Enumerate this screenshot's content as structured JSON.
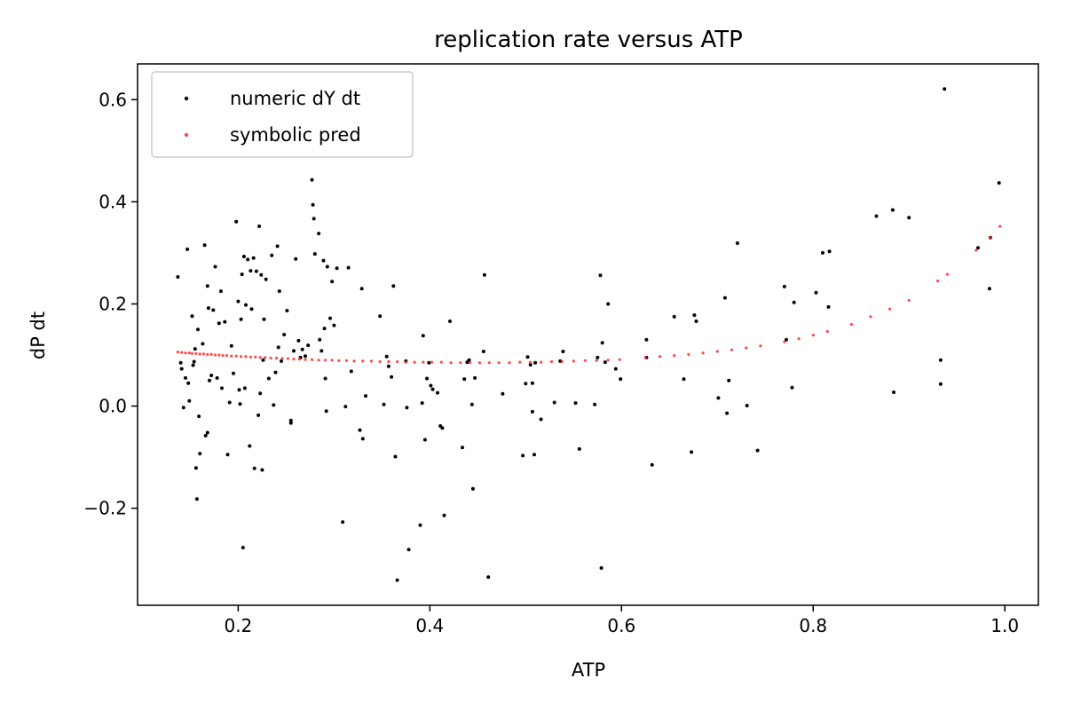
{
  "chart_data": {
    "type": "scatter",
    "title": "replication rate versus ATP",
    "xlabel": "ATP",
    "ylabel": "dP dt",
    "xlim": [
      0.095,
      1.035
    ],
    "ylim": [
      -0.39,
      0.67
    ],
    "xticks": [
      0.2,
      0.4,
      0.6,
      0.8,
      1.0
    ],
    "xtick_labels": [
      "0.2",
      "0.4",
      "0.6",
      "0.8",
      "1.0"
    ],
    "yticks": [
      -0.2,
      0.0,
      0.2,
      0.4,
      0.6
    ],
    "ytick_labels": [
      "−0.2",
      "0.0",
      "0.2",
      "0.4",
      "0.6"
    ],
    "grid": false,
    "legend_position": "top-left",
    "series": [
      {
        "name": "numeric dY dt",
        "color": "#000000",
        "points": [
          [
            0.137,
            0.253
          ],
          [
            0.14,
            0.085
          ],
          [
            0.141,
            0.073
          ],
          [
            0.143,
            -0.003
          ],
          [
            0.145,
            0.055
          ],
          [
            0.147,
            0.307
          ],
          [
            0.148,
            0.045
          ],
          [
            0.149,
            0.01
          ],
          [
            0.152,
            0.176
          ],
          [
            0.153,
            0.08
          ],
          [
            0.154,
            0.087
          ],
          [
            0.155,
            0.112
          ],
          [
            0.156,
            -0.121
          ],
          [
            0.157,
            -0.182
          ],
          [
            0.158,
            0.15
          ],
          [
            0.159,
            -0.02
          ],
          [
            0.16,
            -0.093
          ],
          [
            0.163,
            0.122
          ],
          [
            0.165,
            0.315
          ],
          [
            0.166,
            -0.058
          ],
          [
            0.168,
            -0.052
          ],
          [
            0.168,
            0.235
          ],
          [
            0.169,
            0.192
          ],
          [
            0.17,
            0.05
          ],
          [
            0.172,
            0.06
          ],
          [
            0.174,
            0.188
          ],
          [
            0.176,
            0.273
          ],
          [
            0.178,
            0.055
          ],
          [
            0.18,
            0.162
          ],
          [
            0.182,
            0.225
          ],
          [
            0.183,
            0.035
          ],
          [
            0.186,
            0.165
          ],
          [
            0.189,
            -0.095
          ],
          [
            0.191,
            0.007
          ],
          [
            0.193,
            0.118
          ],
          [
            0.195,
            0.064
          ],
          [
            0.198,
            0.361
          ],
          [
            0.2,
            0.205
          ],
          [
            0.201,
            0.032
          ],
          [
            0.202,
            0.004
          ],
          [
            0.203,
            0.17
          ],
          [
            0.204,
            0.258
          ],
          [
            0.205,
            -0.277
          ],
          [
            0.206,
            0.293
          ],
          [
            0.207,
            0.035
          ],
          [
            0.208,
            0.198
          ],
          [
            0.21,
            0.287
          ],
          [
            0.212,
            -0.078
          ],
          [
            0.213,
            0.265
          ],
          [
            0.214,
            0.19
          ],
          [
            0.216,
            0.29
          ],
          [
            0.217,
            -0.122
          ],
          [
            0.219,
            0.264
          ],
          [
            0.221,
            -0.018
          ],
          [
            0.222,
            0.352
          ],
          [
            0.223,
            0.025
          ],
          [
            0.224,
            0.257
          ],
          [
            0.225,
            -0.125
          ],
          [
            0.226,
            0.09
          ],
          [
            0.227,
            0.17
          ],
          [
            0.229,
            0.248
          ],
          [
            0.232,
            0.054
          ],
          [
            0.235,
            0.295
          ],
          [
            0.237,
            0.002
          ],
          [
            0.239,
            0.066
          ],
          [
            0.241,
            0.313
          ],
          [
            0.242,
            0.115
          ],
          [
            0.243,
            0.225
          ],
          [
            0.245,
            0.088
          ],
          [
            0.248,
            0.14
          ],
          [
            0.251,
            0.187
          ],
          [
            0.255,
            -0.028
          ],
          [
            0.255,
            -0.033
          ],
          [
            0.258,
            0.108
          ],
          [
            0.26,
            0.288
          ],
          [
            0.263,
            0.128
          ],
          [
            0.265,
            0.095
          ],
          [
            0.267,
            0.111
          ],
          [
            0.27,
            0.098
          ],
          [
            0.273,
            0.119
          ],
          [
            0.277,
            0.443
          ],
          [
            0.278,
            0.394
          ],
          [
            0.279,
            0.367
          ],
          [
            0.28,
            0.298
          ],
          [
            0.284,
            0.338
          ],
          [
            0.285,
            0.13
          ],
          [
            0.287,
            0.108
          ],
          [
            0.289,
            0.285
          ],
          [
            0.29,
            0.152
          ],
          [
            0.291,
            0.054
          ],
          [
            0.292,
            -0.01
          ],
          [
            0.293,
            0.273
          ],
          [
            0.296,
            0.172
          ],
          [
            0.298,
            0.244
          ],
          [
            0.3,
            0.158
          ],
          [
            0.303,
            0.27
          ],
          [
            0.309,
            -0.227
          ],
          [
            0.312,
            -0.001
          ],
          [
            0.315,
            0.271
          ],
          [
            0.318,
            0.068
          ],
          [
            0.327,
            -0.047
          ],
          [
            0.329,
            0.23
          ],
          [
            0.33,
            -0.064
          ],
          [
            0.333,
            0.02
          ],
          [
            0.348,
            0.176
          ],
          [
            0.352,
            0.003
          ],
          [
            0.355,
            0.097
          ],
          [
            0.357,
            0.078
          ],
          [
            0.36,
            0.057
          ],
          [
            0.362,
            0.235
          ],
          [
            0.364,
            -0.099
          ],
          [
            0.366,
            -0.341
          ],
          [
            0.375,
            0.088
          ],
          [
            0.376,
            -0.003
          ],
          [
            0.378,
            -0.281
          ],
          [
            0.39,
            -0.233
          ],
          [
            0.392,
            0.006
          ],
          [
            0.393,
            0.138
          ],
          [
            0.395,
            -0.066
          ],
          [
            0.397,
            0.054
          ],
          [
            0.399,
            0.085
          ],
          [
            0.401,
            0.04
          ],
          [
            0.403,
            0.033
          ],
          [
            0.408,
            0.026
          ],
          [
            0.411,
            -0.039
          ],
          [
            0.413,
            -0.043
          ],
          [
            0.415,
            -0.214
          ],
          [
            0.421,
            0.166
          ],
          [
            0.434,
            -0.081
          ],
          [
            0.436,
            0.053
          ],
          [
            0.439,
            0.086
          ],
          [
            0.441,
            0.09
          ],
          [
            0.444,
            0.003
          ],
          [
            0.445,
            -0.162
          ],
          [
            0.447,
            0.055
          ],
          [
            0.456,
            0.107
          ],
          [
            0.457,
            0.257
          ],
          [
            0.461,
            -0.335
          ],
          [
            0.476,
            0.024
          ],
          [
            0.497,
            -0.097
          ],
          [
            0.5,
            0.044
          ],
          [
            0.502,
            0.096
          ],
          [
            0.505,
            0.081
          ],
          [
            0.507,
            0.045
          ],
          [
            0.507,
            -0.011
          ],
          [
            0.509,
            -0.095
          ],
          [
            0.51,
            0.085
          ],
          [
            0.516,
            -0.026
          ],
          [
            0.53,
            0.007
          ],
          [
            0.536,
            0.088
          ],
          [
            0.539,
            0.107
          ],
          [
            0.552,
            0.006
          ],
          [
            0.556,
            -0.084
          ],
          [
            0.572,
            0.003
          ],
          [
            0.575,
            0.095
          ],
          [
            0.578,
            0.256
          ],
          [
            0.579,
            -0.317
          ],
          [
            0.58,
            0.124
          ],
          [
            0.583,
            0.086
          ],
          [
            0.586,
            0.2
          ],
          [
            0.594,
            0.073
          ],
          [
            0.599,
            0.053
          ],
          [
            0.626,
            0.13
          ],
          [
            0.626,
            0.095
          ],
          [
            0.632,
            -0.115
          ],
          [
            0.655,
            0.175
          ],
          [
            0.665,
            0.053
          ],
          [
            0.673,
            -0.09
          ],
          [
            0.676,
            0.178
          ],
          [
            0.678,
            0.166
          ],
          [
            0.701,
            0.016
          ],
          [
            0.708,
            0.212
          ],
          [
            0.71,
            -0.014
          ],
          [
            0.712,
            0.05
          ],
          [
            0.721,
            0.319
          ],
          [
            0.731,
            0.001
          ],
          [
            0.742,
            -0.087
          ],
          [
            0.77,
            0.234
          ],
          [
            0.772,
            0.13
          ],
          [
            0.778,
            0.036
          ],
          [
            0.78,
            0.203
          ],
          [
            0.803,
            0.222
          ],
          [
            0.81,
            0.3
          ],
          [
            0.816,
            0.194
          ],
          [
            0.817,
            0.303
          ],
          [
            0.866,
            0.372
          ],
          [
            0.883,
            0.384
          ],
          [
            0.884,
            0.027
          ],
          [
            0.9,
            0.369
          ],
          [
            0.933,
            0.043
          ],
          [
            0.933,
            0.09
          ],
          [
            0.937,
            0.621
          ],
          [
            0.972,
            0.31
          ],
          [
            0.984,
            0.23
          ],
          [
            0.985,
            0.33
          ],
          [
            0.994,
            0.437
          ]
        ]
      },
      {
        "name": "symbolic pred",
        "color": "#ff2a2a",
        "points": [
          [
            0.137,
            0.106
          ],
          [
            0.141,
            0.105
          ],
          [
            0.145,
            0.104
          ],
          [
            0.149,
            0.104
          ],
          [
            0.152,
            0.103
          ],
          [
            0.156,
            0.103
          ],
          [
            0.16,
            0.102
          ],
          [
            0.164,
            0.102
          ],
          [
            0.168,
            0.101
          ],
          [
            0.172,
            0.101
          ],
          [
            0.176,
            0.1
          ],
          [
            0.18,
            0.1
          ],
          [
            0.184,
            0.099
          ],
          [
            0.188,
            0.099
          ],
          [
            0.193,
            0.098
          ],
          [
            0.198,
            0.098
          ],
          [
            0.203,
            0.097
          ],
          [
            0.208,
            0.097
          ],
          [
            0.213,
            0.096
          ],
          [
            0.218,
            0.096
          ],
          [
            0.223,
            0.095
          ],
          [
            0.228,
            0.095
          ],
          [
            0.234,
            0.094
          ],
          [
            0.24,
            0.094
          ],
          [
            0.246,
            0.093
          ],
          [
            0.252,
            0.093
          ],
          [
            0.258,
            0.092
          ],
          [
            0.264,
            0.092
          ],
          [
            0.27,
            0.091
          ],
          [
            0.277,
            0.091
          ],
          [
            0.284,
            0.09
          ],
          [
            0.291,
            0.09
          ],
          [
            0.298,
            0.09
          ],
          [
            0.305,
            0.089
          ],
          [
            0.313,
            0.089
          ],
          [
            0.321,
            0.088
          ],
          [
            0.33,
            0.088
          ],
          [
            0.339,
            0.088
          ],
          [
            0.348,
            0.087
          ],
          [
            0.357,
            0.087
          ],
          [
            0.366,
            0.087
          ],
          [
            0.375,
            0.086
          ],
          [
            0.384,
            0.086
          ],
          [
            0.393,
            0.086
          ],
          [
            0.402,
            0.086
          ],
          [
            0.412,
            0.086
          ],
          [
            0.422,
            0.085
          ],
          [
            0.432,
            0.085
          ],
          [
            0.442,
            0.085
          ],
          [
            0.452,
            0.085
          ],
          [
            0.462,
            0.085
          ],
          [
            0.472,
            0.085
          ],
          [
            0.483,
            0.085
          ],
          [
            0.494,
            0.086
          ],
          [
            0.505,
            0.086
          ],
          [
            0.516,
            0.086
          ],
          [
            0.527,
            0.087
          ],
          [
            0.538,
            0.087
          ],
          [
            0.55,
            0.088
          ],
          [
            0.562,
            0.089
          ],
          [
            0.574,
            0.089
          ],
          [
            0.586,
            0.09
          ],
          [
            0.598,
            0.091
          ],
          [
            0.625,
            0.095
          ],
          [
            0.64,
            0.097
          ],
          [
            0.655,
            0.099
          ],
          [
            0.67,
            0.101
          ],
          [
            0.685,
            0.104
          ],
          [
            0.7,
            0.107
          ],
          [
            0.715,
            0.11
          ],
          [
            0.73,
            0.114
          ],
          [
            0.745,
            0.118
          ],
          [
            0.77,
            0.126
          ],
          [
            0.785,
            0.132
          ],
          [
            0.8,
            0.139
          ],
          [
            0.815,
            0.146
          ],
          [
            0.84,
            0.16
          ],
          [
            0.86,
            0.175
          ],
          [
            0.88,
            0.19
          ],
          [
            0.9,
            0.207
          ],
          [
            0.93,
            0.245
          ],
          [
            0.94,
            0.258
          ],
          [
            0.97,
            0.305
          ],
          [
            0.985,
            0.33
          ],
          [
            0.995,
            0.352
          ]
        ]
      }
    ]
  }
}
